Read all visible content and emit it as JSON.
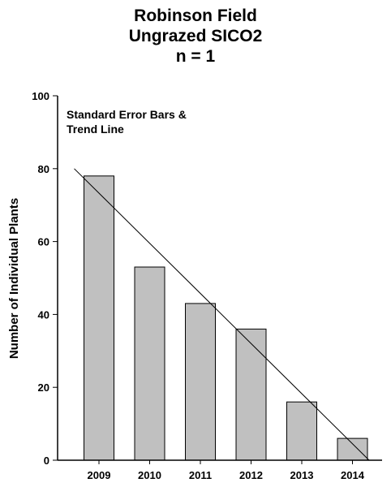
{
  "chart_data": {
    "type": "bar",
    "title_lines": [
      "Robinson Field",
      "Ungrazed SICO2",
      "n = 1"
    ],
    "annotation_lines": [
      "Standard Error Bars &",
      "Trend Line"
    ],
    "ylabel": "Number of Individual Plants",
    "xlabel": "",
    "categories": [
      "2009",
      "2010",
      "2011",
      "2012",
      "2013",
      "2014"
    ],
    "values": [
      78,
      53,
      43,
      36,
      16,
      6
    ],
    "ylim": [
      0,
      100
    ],
    "yticks": [
      0,
      20,
      40,
      60,
      80,
      100
    ],
    "trend_line": {
      "start": 80,
      "end": 0
    },
    "bar_color": "#c0c0c0",
    "grid": false
  }
}
